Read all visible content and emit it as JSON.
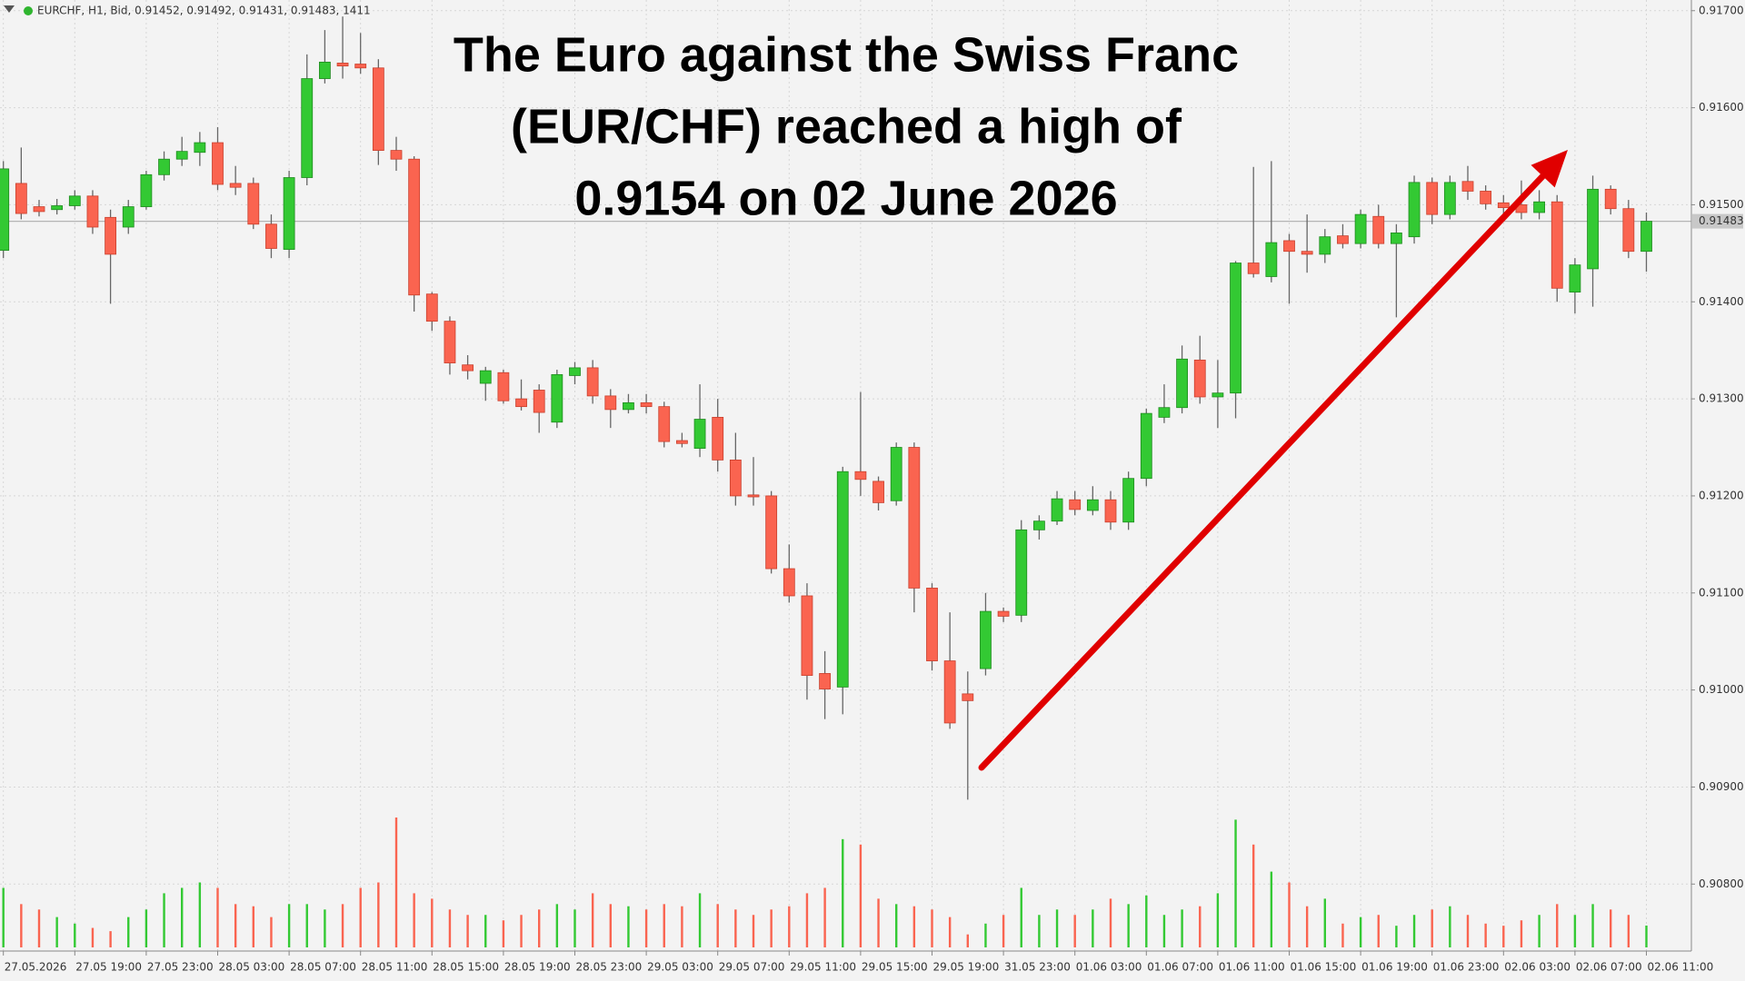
{
  "chart_data": {
    "type": "candlestick",
    "header": "EURCHF, H1, Bid, 0.91452, 0.91492, 0.91431, 0.91483, 1411",
    "annotation": [
      "The Euro against the Swiss Franc",
      "(EUR/CHF) reached a high of",
      "0.9154 on 02 June 2026"
    ],
    "categories": [
      "27.05.2026",
      null,
      null,
      null,
      "27.05 19:00",
      null,
      null,
      null,
      "27.05 23:00",
      null,
      null,
      null,
      "28.05 03:00",
      null,
      null,
      null,
      "28.05 07:00",
      null,
      null,
      null,
      "28.05 11:00",
      null,
      null,
      null,
      "28.05 15:00",
      null,
      null,
      null,
      "28.05 19:00",
      null,
      null,
      null,
      "28.05 23:00",
      null,
      null,
      null,
      "29.05 03:00",
      null,
      null,
      null,
      "29.05 07:00",
      null,
      null,
      null,
      "29.05 11:00",
      null,
      null,
      null,
      "29.05 15:00",
      null,
      null,
      null,
      "29.05 19:00",
      null,
      null,
      null,
      "31.05 23:00",
      null,
      null,
      null,
      "01.06 03:00",
      null,
      null,
      null,
      "01.06 07:00",
      null,
      null,
      null,
      "01.06 11:00",
      null,
      null,
      null,
      "01.06 15:00",
      null,
      null,
      null,
      "01.06 19:00",
      null,
      null,
      null,
      "01.06 23:00",
      null,
      null,
      null,
      "02.06 03:00",
      null,
      null,
      null,
      "02.06 07:00",
      null,
      null,
      null,
      "02.06 11:00"
    ],
    "open": [
      0.91453,
      0.91522,
      0.91498,
      0.91495,
      0.91499,
      0.91509,
      0.91487,
      0.91477,
      0.91498,
      0.91531,
      0.91547,
      0.91554,
      0.91564,
      0.91522,
      0.91522,
      0.9148,
      0.91454,
      0.91528,
      0.9163,
      0.91646,
      0.91645,
      0.91641,
      0.91556,
      0.91547,
      0.91408,
      0.9138,
      0.91335,
      0.91316,
      0.91327,
      0.913,
      0.91309,
      0.91276,
      0.91324,
      0.91332,
      0.91303,
      0.91289,
      0.91296,
      0.91292,
      0.91257,
      0.91249,
      0.91281,
      0.91237,
      0.91201,
      0.912,
      0.91125,
      0.91097,
      0.91017,
      0.91003,
      0.91225,
      0.91215,
      0.91195,
      0.9125,
      0.91105,
      0.9103,
      0.90996,
      0.91022,
      0.91081,
      0.91077,
      0.91165,
      0.91174,
      0.91196,
      0.91185,
      0.91196,
      0.91173,
      0.91218,
      0.91281,
      0.91291,
      0.9134,
      0.91302,
      0.91306,
      0.9144,
      0.91426,
      0.91463,
      0.91452,
      0.91449,
      0.91468,
      0.9146,
      0.91488,
      0.9146,
      0.91467,
      0.91523,
      0.9149,
      0.91524,
      0.91514,
      0.91502,
      0.915,
      0.91492,
      0.91503,
      0.9141,
      0.91434,
      0.91516,
      0.91496,
      0.91452
    ],
    "high": [
      0.91545,
      0.91559,
      0.91505,
      0.91506,
      0.91515,
      0.91515,
      0.91495,
      0.91505,
      0.91535,
      0.91555,
      0.9157,
      0.91575,
      0.9158,
      0.9154,
      0.91528,
      0.9149,
      0.91535,
      0.91655,
      0.9168,
      0.91694,
      0.91677,
      0.9165,
      0.9157,
      0.9155,
      0.9141,
      0.91385,
      0.91345,
      0.91333,
      0.9133,
      0.9132,
      0.91315,
      0.9133,
      0.91338,
      0.9134,
      0.9131,
      0.91305,
      0.91305,
      0.91297,
      0.91265,
      0.91315,
      0.913,
      0.91265,
      0.9124,
      0.91205,
      0.9115,
      0.9111,
      0.9104,
      0.9123,
      0.91307,
      0.9122,
      0.91255,
      0.91255,
      0.9111,
      0.9108,
      0.91019,
      0.911,
      0.91085,
      0.91175,
      0.9118,
      0.91205,
      0.91205,
      0.9121,
      0.91205,
      0.91225,
      0.9129,
      0.91315,
      0.91355,
      0.91365,
      0.9134,
      0.91442,
      0.91539,
      0.91545,
      0.9147,
      0.9149,
      0.91475,
      0.9148,
      0.91495,
      0.915,
      0.9148,
      0.9153,
      0.91528,
      0.9153,
      0.9154,
      0.9152,
      0.9151,
      0.91525,
      0.91515,
      0.9151,
      0.91445,
      0.9153,
      0.9152,
      0.91505,
      0.91492
    ],
    "low": [
      0.91445,
      0.91485,
      0.91488,
      0.9149,
      0.91495,
      0.9147,
      0.91398,
      0.9147,
      0.91495,
      0.91525,
      0.9154,
      0.9154,
      0.91515,
      0.9151,
      0.91475,
      0.91445,
      0.91445,
      0.9152,
      0.91625,
      0.9163,
      0.91635,
      0.91541,
      0.91535,
      0.9139,
      0.9137,
      0.91325,
      0.9132,
      0.91298,
      0.91295,
      0.91288,
      0.91265,
      0.9127,
      0.91315,
      0.91295,
      0.9127,
      0.91285,
      0.91285,
      0.9125,
      0.9125,
      0.9124,
      0.91225,
      0.9119,
      0.9119,
      0.9112,
      0.9109,
      0.9099,
      0.9097,
      0.90975,
      0.912,
      0.91185,
      0.9119,
      0.9108,
      0.9102,
      0.9096,
      0.90887,
      0.91015,
      0.9107,
      0.9107,
      0.91155,
      0.9117,
      0.9118,
      0.9118,
      0.91165,
      0.91165,
      0.9121,
      0.91275,
      0.91285,
      0.91295,
      0.9127,
      0.9128,
      0.91425,
      0.9142,
      0.91398,
      0.9143,
      0.9144,
      0.91455,
      0.91455,
      0.91455,
      0.91384,
      0.9146,
      0.9148,
      0.91485,
      0.91505,
      0.91495,
      0.9149,
      0.91485,
      0.91485,
      0.914,
      0.91388,
      0.91395,
      0.9149,
      0.91445,
      0.91431
    ],
    "close": [
      0.91537,
      0.91491,
      0.91493,
      0.91499,
      0.91509,
      0.91477,
      0.91449,
      0.91498,
      0.91531,
      0.91547,
      0.91555,
      0.91564,
      0.91521,
      0.91518,
      0.9148,
      0.91455,
      0.91528,
      0.9163,
      0.91647,
      0.91643,
      0.91641,
      0.91556,
      0.91547,
      0.91407,
      0.9138,
      0.91337,
      0.91329,
      0.91329,
      0.91298,
      0.91292,
      0.91286,
      0.91325,
      0.91332,
      0.91303,
      0.91289,
      0.91296,
      0.91292,
      0.91256,
      0.91254,
      0.91279,
      0.91237,
      0.912,
      0.91199,
      0.91125,
      0.91097,
      0.91015,
      0.91001,
      0.91225,
      0.91217,
      0.91193,
      0.9125,
      0.91105,
      0.9103,
      0.90966,
      0.90989,
      0.91081,
      0.91076,
      0.91165,
      0.91174,
      0.91197,
      0.91186,
      0.91196,
      0.91173,
      0.91218,
      0.91285,
      0.91291,
      0.91341,
      0.91302,
      0.91306,
      0.9144,
      0.91429,
      0.91461,
      0.91452,
      0.91449,
      0.91467,
      0.9146,
      0.9149,
      0.9146,
      0.91471,
      0.91523,
      0.9149,
      0.91523,
      0.91514,
      0.91501,
      0.91497,
      0.91492,
      0.91503,
      0.91414,
      0.91438,
      0.91516,
      0.91496,
      0.91452,
      0.91483
    ],
    "volume": [
      3850,
      2800,
      2450,
      1960,
      1540,
      1260,
      1050,
      1960,
      2450,
      3500,
      3850,
      4200,
      3850,
      2800,
      2660,
      1960,
      2800,
      2800,
      2450,
      2800,
      3850,
      4200,
      8400,
      3500,
      3150,
      2450,
      2100,
      2100,
      1750,
      2100,
      2450,
      2800,
      2450,
      3500,
      2800,
      2660,
      2450,
      2800,
      2660,
      3500,
      2800,
      2450,
      2100,
      2450,
      2660,
      3500,
      3850,
      7000,
      6650,
      3150,
      2800,
      2660,
      2450,
      1960,
      840,
      1540,
      2100,
      3850,
      2100,
      2450,
      2100,
      2450,
      3150,
      2800,
      3360,
      2100,
      2450,
      2660,
      3500,
      8260,
      6650,
      4900,
      4200,
      2660,
      3150,
      1540,
      1960,
      2100,
      1400,
      2100,
      2450,
      2660,
      2100,
      1540,
      1400,
      1750,
      2100,
      2800,
      2100,
      2800,
      2450,
      2100,
      1411
    ],
    "up_color": "#33c933",
    "down_color": "#fa6450",
    "ylim": [
      0.90731,
      0.91711
    ],
    "yticks": [
      {
        "value": 0.917,
        "label": "0.91700"
      },
      {
        "value": 0.916,
        "label": "0.91600"
      },
      {
        "value": 0.915,
        "label": "0.91500"
      },
      {
        "value": 0.914,
        "label": "0.91400"
      },
      {
        "value": 0.913,
        "label": "0.91300"
      },
      {
        "value": 0.912,
        "label": "0.91200"
      },
      {
        "value": 0.911,
        "label": "0.91100"
      },
      {
        "value": 0.91,
        "label": "0.91000"
      },
      {
        "value": 0.909,
        "label": "0.90900"
      },
      {
        "value": 0.908,
        "label": "0.90800"
      }
    ],
    "grid": true
  }
}
